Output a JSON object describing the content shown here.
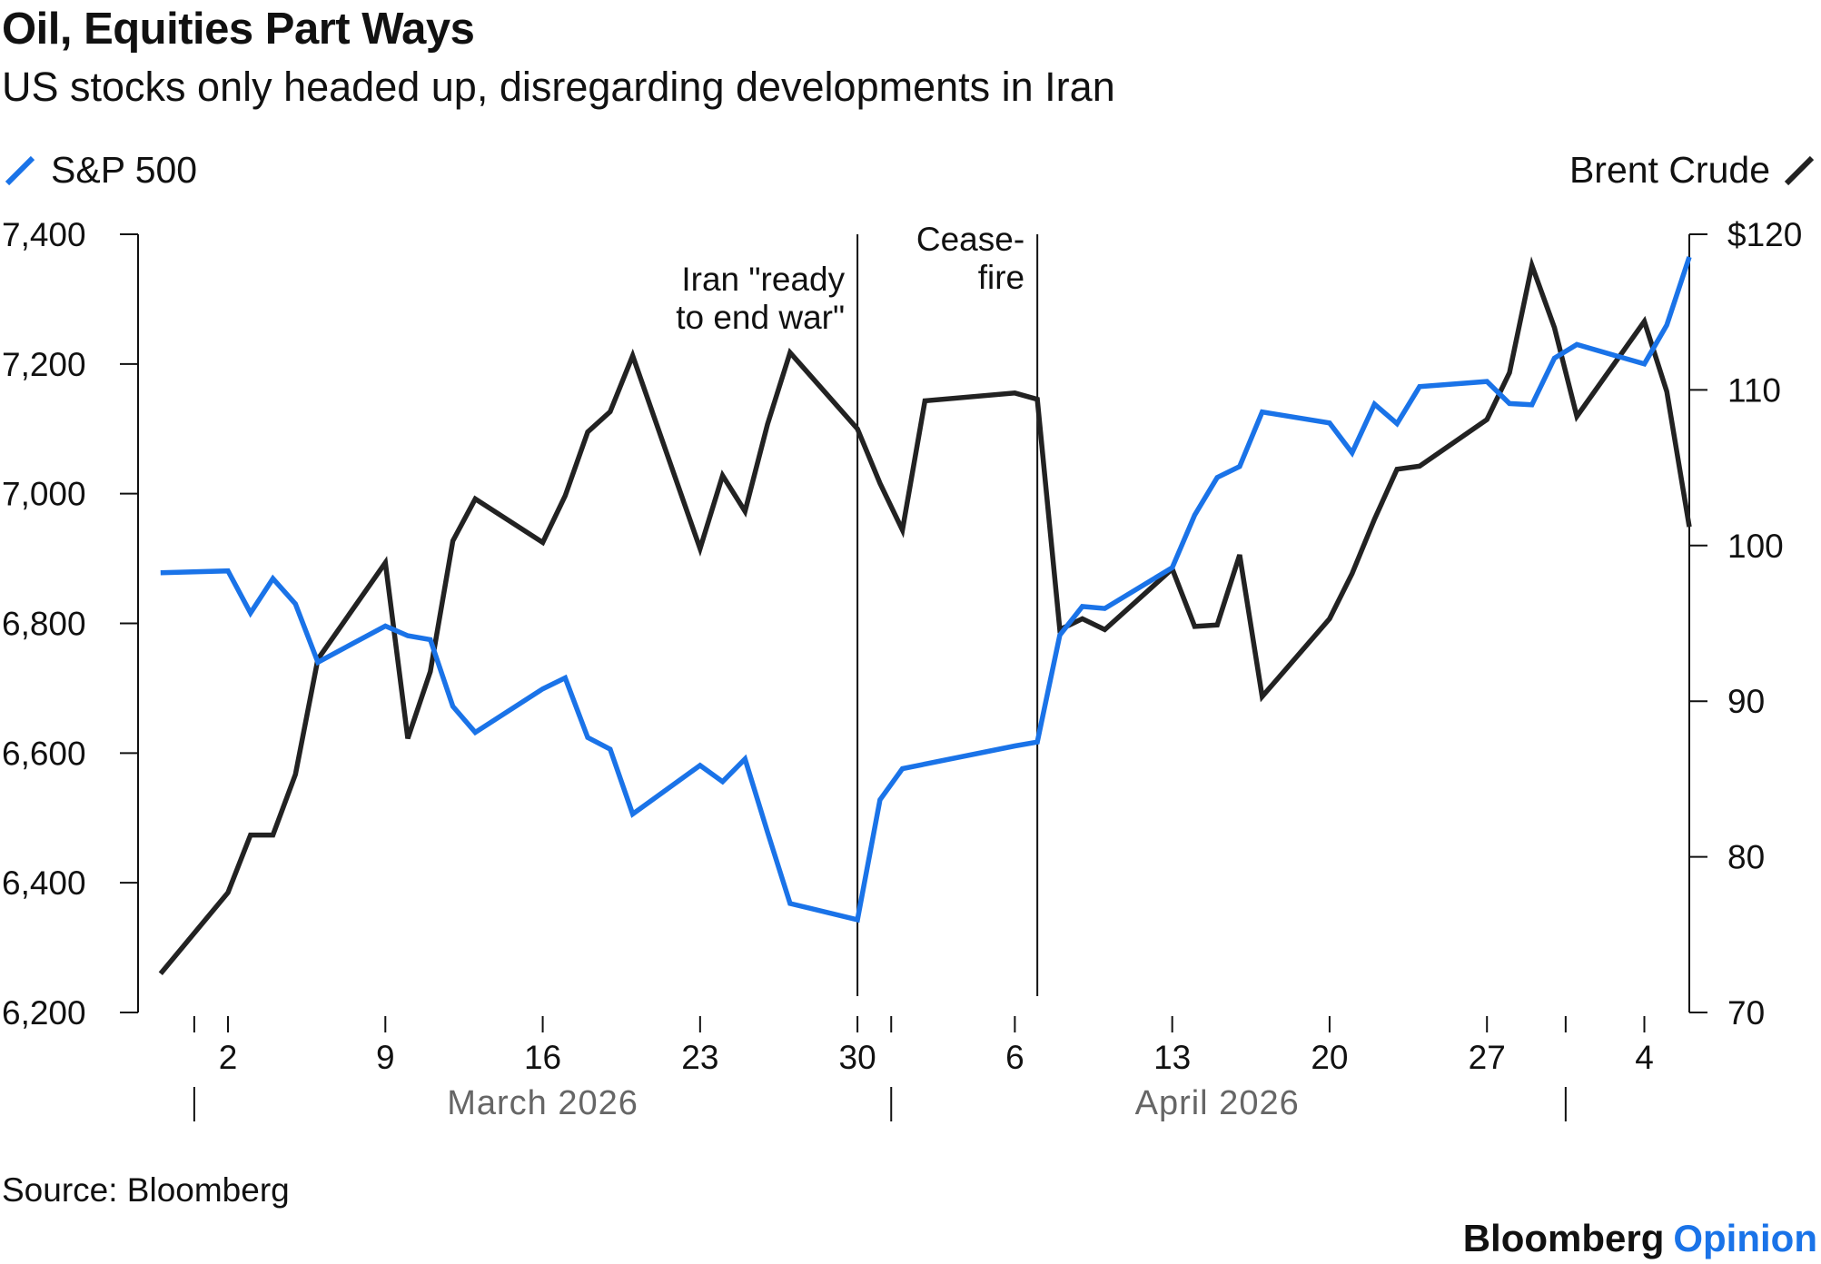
{
  "title": "Oil, Equities Part Ways",
  "subtitle": "US stocks only headed up, disregarding developments in Iran",
  "source": "Source: Bloomberg",
  "brand": {
    "name": "Bloomberg",
    "suffix": "Opinion"
  },
  "colors": {
    "sp500": "#1a73e8",
    "brent": "#222222",
    "axis": "#111111",
    "month_label": "#666666"
  },
  "chart_data": {
    "type": "line",
    "x_unit": "date",
    "legend": {
      "left": {
        "name": "S&P 500",
        "axis": "left"
      },
      "right": {
        "name": "Brent Crude",
        "axis": "right"
      }
    },
    "y_left": {
      "ylim": [
        6200,
        7400
      ],
      "ticks": [
        7400,
        7200,
        7000,
        6800,
        6600,
        6400,
        6200
      ],
      "tick_labels": [
        "7,400",
        "7,200",
        "7,000",
        "6,800",
        "6,600",
        "6,400",
        "6,200"
      ]
    },
    "y_right": {
      "ylim": [
        70,
        120
      ],
      "ticks": [
        120,
        110,
        100,
        90,
        80,
        70
      ],
      "tick_labels": [
        "$120",
        "110",
        "100",
        "90",
        "80",
        "70"
      ]
    },
    "xlim": [
      "2026-02-26",
      "2026-05-06"
    ],
    "x_ticks": [
      {
        "date": "2026-03-02",
        "label": "2"
      },
      {
        "date": "2026-03-09",
        "label": "9"
      },
      {
        "date": "2026-03-16",
        "label": "16"
      },
      {
        "date": "2026-03-23",
        "label": "23"
      },
      {
        "date": "2026-03-30",
        "label": "30"
      },
      {
        "date": "2026-04-06",
        "label": "6"
      },
      {
        "date": "2026-04-13",
        "label": "13"
      },
      {
        "date": "2026-04-20",
        "label": "20"
      },
      {
        "date": "2026-04-27",
        "label": "27"
      },
      {
        "date": "2026-05-04",
        "label": "4"
      }
    ],
    "month_labels": [
      {
        "label": "March 2026",
        "center": "2026-03-16"
      },
      {
        "label": "April 2026",
        "center": "2026-04-15"
      }
    ],
    "month_boundaries": [
      "2026-03-01",
      "2026-04-01",
      "2026-05-01"
    ],
    "annotations": [
      {
        "date": "2026-03-30",
        "lines": [
          "Iran \"ready",
          "to end war\""
        ]
      },
      {
        "date": "2026-04-07",
        "lines": [
          "Cease-",
          "fire"
        ]
      }
    ],
    "series": [
      {
        "name": "S&P 500",
        "axis": "left",
        "points": [
          [
            "2026-02-27",
            6878
          ],
          [
            "2026-03-02",
            6881
          ],
          [
            "2026-03-03",
            6816
          ],
          [
            "2026-03-04",
            6869
          ],
          [
            "2026-03-05",
            6830
          ],
          [
            "2026-03-06",
            6740
          ],
          [
            "2026-03-09",
            6796
          ],
          [
            "2026-03-10",
            6781
          ],
          [
            "2026-03-11",
            6775
          ],
          [
            "2026-03-12",
            6672
          ],
          [
            "2026-03-13",
            6632
          ],
          [
            "2026-03-16",
            6699
          ],
          [
            "2026-03-17",
            6716
          ],
          [
            "2026-03-18",
            6624
          ],
          [
            "2026-03-19",
            6606
          ],
          [
            "2026-03-20",
            6506
          ],
          [
            "2026-03-23",
            6581
          ],
          [
            "2026-03-24",
            6556
          ],
          [
            "2026-03-25",
            6591
          ],
          [
            "2026-03-26",
            6478
          ],
          [
            "2026-03-27",
            6368
          ],
          [
            "2026-03-30",
            6343
          ],
          [
            "2026-03-31",
            6528
          ],
          [
            "2026-04-01",
            6576
          ],
          [
            "2026-04-06",
            6611
          ],
          [
            "2026-04-07",
            6617
          ],
          [
            "2026-04-08",
            6782
          ],
          [
            "2026-04-09",
            6826
          ],
          [
            "2026-04-10",
            6823
          ],
          [
            "2026-04-13",
            6886
          ],
          [
            "2026-04-14",
            6967
          ],
          [
            "2026-04-15",
            7025
          ],
          [
            "2026-04-16",
            7042
          ],
          [
            "2026-04-17",
            7126
          ],
          [
            "2026-04-20",
            7109
          ],
          [
            "2026-04-21",
            7063
          ],
          [
            "2026-04-22",
            7138
          ],
          [
            "2026-04-23",
            7108
          ],
          [
            "2026-04-24",
            7165
          ],
          [
            "2026-04-27",
            7173
          ],
          [
            "2026-04-28",
            7139
          ],
          [
            "2026-04-29",
            7137
          ],
          [
            "2026-04-30",
            7209
          ],
          [
            "2026-05-01",
            7230
          ],
          [
            "2026-05-04",
            7200
          ],
          [
            "2026-05-05",
            7260
          ],
          [
            "2026-05-06",
            7365
          ]
        ]
      },
      {
        "name": "Brent Crude",
        "axis": "right",
        "points": [
          [
            "2026-02-27",
            72.5
          ],
          [
            "2026-03-02",
            77.7
          ],
          [
            "2026-03-03",
            81.4
          ],
          [
            "2026-03-04",
            81.4
          ],
          [
            "2026-03-05",
            85.3
          ],
          [
            "2026-03-06",
            92.7
          ],
          [
            "2026-03-09",
            98.9
          ],
          [
            "2026-03-10",
            87.6
          ],
          [
            "2026-03-11",
            91.9
          ],
          [
            "2026-03-12",
            100.3
          ],
          [
            "2026-03-13",
            103.0
          ],
          [
            "2026-03-16",
            100.2
          ],
          [
            "2026-03-17",
            103.2
          ],
          [
            "2026-03-18",
            107.3
          ],
          [
            "2026-03-19",
            108.6
          ],
          [
            "2026-03-20",
            112.2
          ],
          [
            "2026-03-23",
            99.8
          ],
          [
            "2026-03-24",
            104.5
          ],
          [
            "2026-03-25",
            102.2
          ],
          [
            "2026-03-26",
            107.8
          ],
          [
            "2026-03-27",
            112.4
          ],
          [
            "2026-03-30",
            107.5
          ],
          [
            "2026-03-31",
            104.0
          ],
          [
            "2026-04-01",
            101.0
          ],
          [
            "2026-04-02",
            109.3
          ],
          [
            "2026-04-06",
            109.8
          ],
          [
            "2026-04-07",
            109.4
          ],
          [
            "2026-04-08",
            94.6
          ],
          [
            "2026-04-09",
            95.3
          ],
          [
            "2026-04-10",
            94.6
          ],
          [
            "2026-04-13",
            98.5
          ],
          [
            "2026-04-14",
            94.8
          ],
          [
            "2026-04-15",
            94.9
          ],
          [
            "2026-04-16",
            99.4
          ],
          [
            "2026-04-17",
            90.3
          ],
          [
            "2026-04-20",
            95.3
          ],
          [
            "2026-04-21",
            98.2
          ],
          [
            "2026-04-22",
            101.7
          ],
          [
            "2026-04-23",
            104.9
          ],
          [
            "2026-04-24",
            105.1
          ],
          [
            "2026-04-27",
            108.1
          ],
          [
            "2026-04-28",
            111.1
          ],
          [
            "2026-04-29",
            118.0
          ],
          [
            "2026-04-30",
            114.0
          ],
          [
            "2026-05-01",
            108.3
          ],
          [
            "2026-05-04",
            114.4
          ],
          [
            "2026-05-05",
            109.9
          ],
          [
            "2026-05-06",
            101.2
          ]
        ]
      }
    ]
  }
}
